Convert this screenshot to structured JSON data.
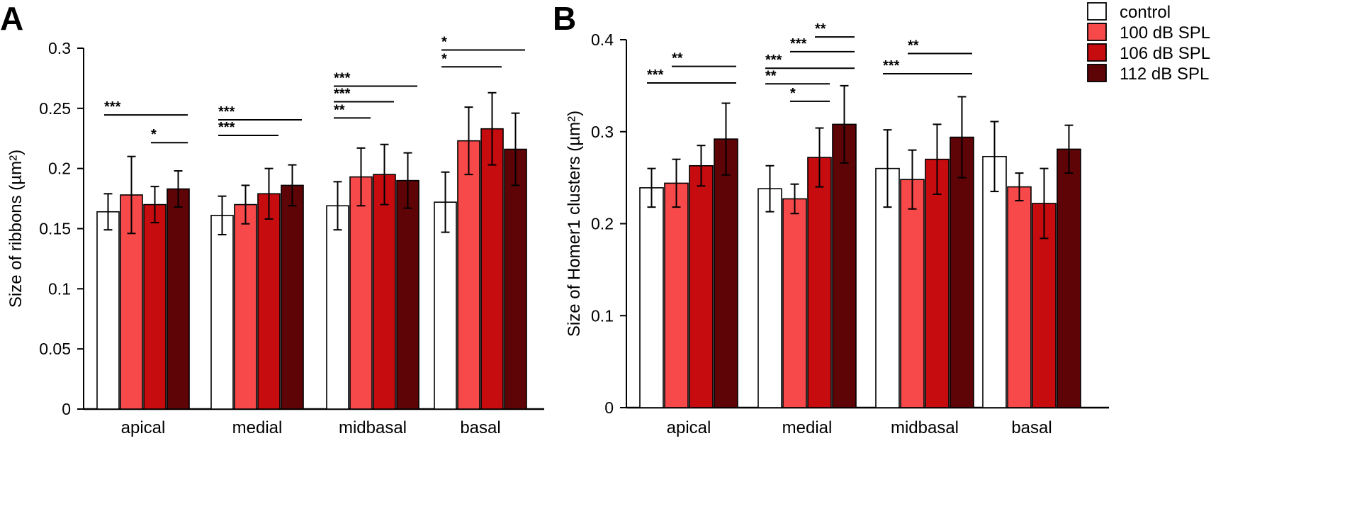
{
  "legend": [
    {
      "label": "control",
      "color": "#ffffff"
    },
    {
      "label": "100 dB SPL",
      "color": "#f8494a"
    },
    {
      "label": "106 dB SPL",
      "color": "#c60c0f"
    },
    {
      "label": "112 dB SPL",
      "color": "#5e0306"
    }
  ],
  "chart_data": [
    {
      "type": "bar",
      "panel": "A",
      "title": "",
      "xlabel": "",
      "ylabel": "Size of ribbons (µm²)",
      "ylim": [
        0,
        0.3
      ],
      "yticks": [
        0,
        0.05,
        0.1,
        0.15,
        0.2,
        0.25,
        0.3
      ],
      "ytick_labels": [
        "0",
        "0.05",
        "0.1",
        "0.15",
        "0.2",
        "0.25",
        "0.3"
      ],
      "categories": [
        "apical",
        "medial",
        "midbasal",
        "basal"
      ],
      "series": [
        {
          "name": "control",
          "values": [
            0.164,
            0.161,
            0.169,
            0.172
          ],
          "errors": [
            0.015,
            0.016,
            0.02,
            0.025
          ]
        },
        {
          "name": "100 dB SPL",
          "values": [
            0.178,
            0.17,
            0.193,
            0.223
          ],
          "errors": [
            0.032,
            0.016,
            0.024,
            0.028
          ]
        },
        {
          "name": "106 dB SPL",
          "values": [
            0.17,
            0.179,
            0.195,
            0.233
          ],
          "errors": [
            0.015,
            0.021,
            0.025,
            0.03
          ]
        },
        {
          "name": "112 dB SPL",
          "values": [
            0.183,
            0.186,
            0.19,
            0.216
          ],
          "errors": [
            0.015,
            0.017,
            0.023,
            0.03
          ]
        }
      ],
      "significance": [
        {
          "category": 0,
          "from": 0,
          "to": 3,
          "label": "***",
          "y": 0.2445
        },
        {
          "category": 0,
          "from": 2,
          "to": 3,
          "label": "*",
          "y": 0.2215
        },
        {
          "category": 1,
          "from": 0,
          "to": 3,
          "label": "***",
          "y": 0.2405
        },
        {
          "category": 1,
          "from": 0,
          "to": 2,
          "label": "***",
          "y": 0.2275
        },
        {
          "category": 2,
          "from": 0,
          "to": 3,
          "label": "***",
          "y": 0.2685
        },
        {
          "category": 2,
          "from": 0,
          "to": 2,
          "label": "***",
          "y": 0.2555
        },
        {
          "category": 2,
          "from": 0,
          "to": 1,
          "label": "**",
          "y": 0.242
        },
        {
          "category": 3,
          "from": 0,
          "to": 3,
          "label": "*",
          "y": 0.2985
        },
        {
          "category": 3,
          "from": 0,
          "to": 2,
          "label": "*",
          "y": 0.2845
        }
      ]
    },
    {
      "type": "bar",
      "panel": "B",
      "title": "",
      "xlabel": "",
      "ylabel": "Size of Homer1 clusters (µm²)",
      "ylim": [
        0,
        0.4
      ],
      "yticks": [
        0,
        0.1,
        0.2,
        0.3,
        0.4
      ],
      "ytick_labels": [
        "0",
        "0.1",
        "0.2",
        "0.3",
        "0.4"
      ],
      "categories": [
        "apical",
        "medial",
        "midbasal",
        "basal"
      ],
      "series": [
        {
          "name": "control",
          "values": [
            0.239,
            0.238,
            0.26,
            0.273
          ],
          "errors": [
            0.021,
            0.025,
            0.042,
            0.038
          ]
        },
        {
          "name": "100 dB SPL",
          "values": [
            0.244,
            0.227,
            0.248,
            0.24
          ],
          "errors": [
            0.026,
            0.016,
            0.032,
            0.015
          ]
        },
        {
          "name": "106 dB SPL",
          "values": [
            0.263,
            0.272,
            0.27,
            0.222
          ],
          "errors": [
            0.022,
            0.032,
            0.038,
            0.038
          ]
        },
        {
          "name": "112 dB SPL",
          "values": [
            0.292,
            0.308,
            0.294,
            0.281
          ],
          "errors": [
            0.039,
            0.042,
            0.044,
            0.026
          ]
        }
      ],
      "significance": [
        {
          "category": 0,
          "from": 0,
          "to": 3,
          "label": "***",
          "y": 0.353
        },
        {
          "category": 0,
          "from": 1,
          "to": 3,
          "label": "**",
          "y": 0.371
        },
        {
          "category": 1,
          "from": 2,
          "to": 3,
          "label": "**",
          "y": 0.403
        },
        {
          "category": 1,
          "from": 1,
          "to": 3,
          "label": "***",
          "y": 0.387
        },
        {
          "category": 1,
          "from": 0,
          "to": 3,
          "label": "***",
          "y": 0.369
        },
        {
          "category": 1,
          "from": 0,
          "to": 2,
          "label": "**",
          "y": 0.352
        },
        {
          "category": 1,
          "from": 1,
          "to": 2,
          "label": "*",
          "y": 0.333
        },
        {
          "category": 2,
          "from": 1,
          "to": 3,
          "label": "**",
          "y": 0.385
        },
        {
          "category": 2,
          "from": 0,
          "to": 3,
          "label": "***",
          "y": 0.363
        }
      ]
    }
  ]
}
